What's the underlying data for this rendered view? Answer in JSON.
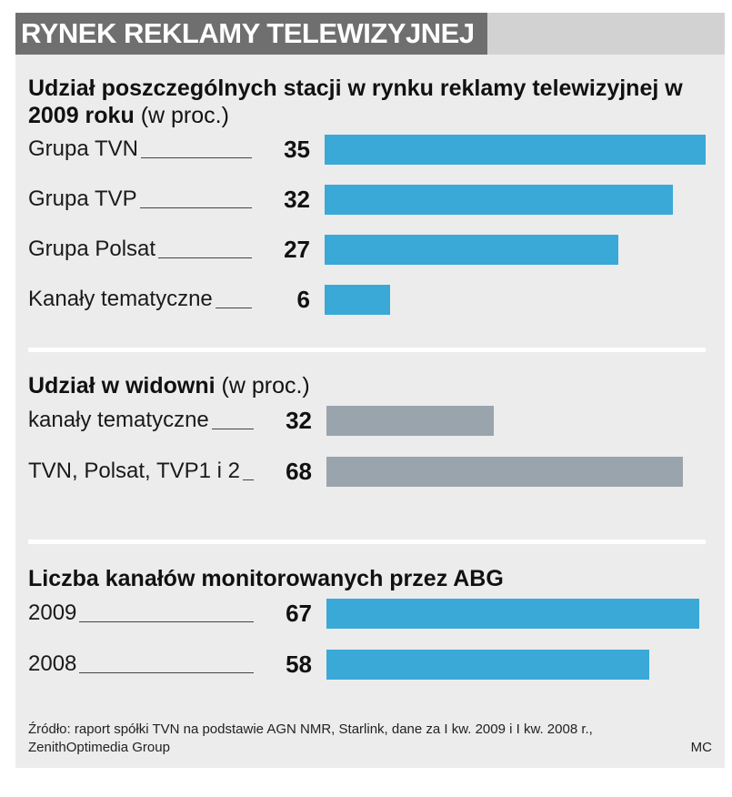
{
  "header": {
    "title": "RYNEK REKLAMY TELEWIZYJNEJ"
  },
  "colors": {
    "blue_bar": "#3aa9d7",
    "gray_bar": "#9aa4ad",
    "title_bg": "#6f6f70",
    "panel_bg": "#ececec"
  },
  "chart_data": [
    {
      "type": "bar",
      "orientation": "horizontal",
      "title": "Udział poszczególnych stacji w rynku reklamy telewizyjnej w 2009 roku",
      "unit": "(w proc.)",
      "categories": [
        "Grupa TVN",
        "Grupa TVP",
        "Grupa Polsat",
        "Kanały tematyczne"
      ],
      "values": [
        35,
        32,
        27,
        6
      ],
      "value_labels": [
        "35",
        "32",
        "27",
        "6"
      ],
      "xlim": [
        0,
        35
      ],
      "color": "#3aa9d7"
    },
    {
      "type": "bar",
      "orientation": "horizontal",
      "title": "Udział w widowni",
      "unit": "(w proc.)",
      "categories": [
        "kanały tematyczne",
        "TVN, Polsat, TVP1 i 2"
      ],
      "values": [
        32,
        68
      ],
      "value_labels": [
        "32",
        "68"
      ],
      "xlim": [
        0,
        72
      ],
      "color": "#9aa4ad"
    },
    {
      "type": "bar",
      "orientation": "horizontal",
      "title": "Liczba kanałów monitorowanych przez ABG",
      "unit": "",
      "categories": [
        "2009",
        "2008"
      ],
      "values": [
        67,
        58
      ],
      "value_labels": [
        "67",
        "58"
      ],
      "xlim": [
        0,
        67
      ],
      "color": "#3aa9d7"
    }
  ],
  "footer": {
    "source_line1": "Źródło: raport spółki TVN na podstawie AGN NMR, Starlink, dane za I kw. 2009 i I kw. 2008 r.,",
    "source_line2": "ZenithOptimedia Group",
    "credit": "MC"
  }
}
